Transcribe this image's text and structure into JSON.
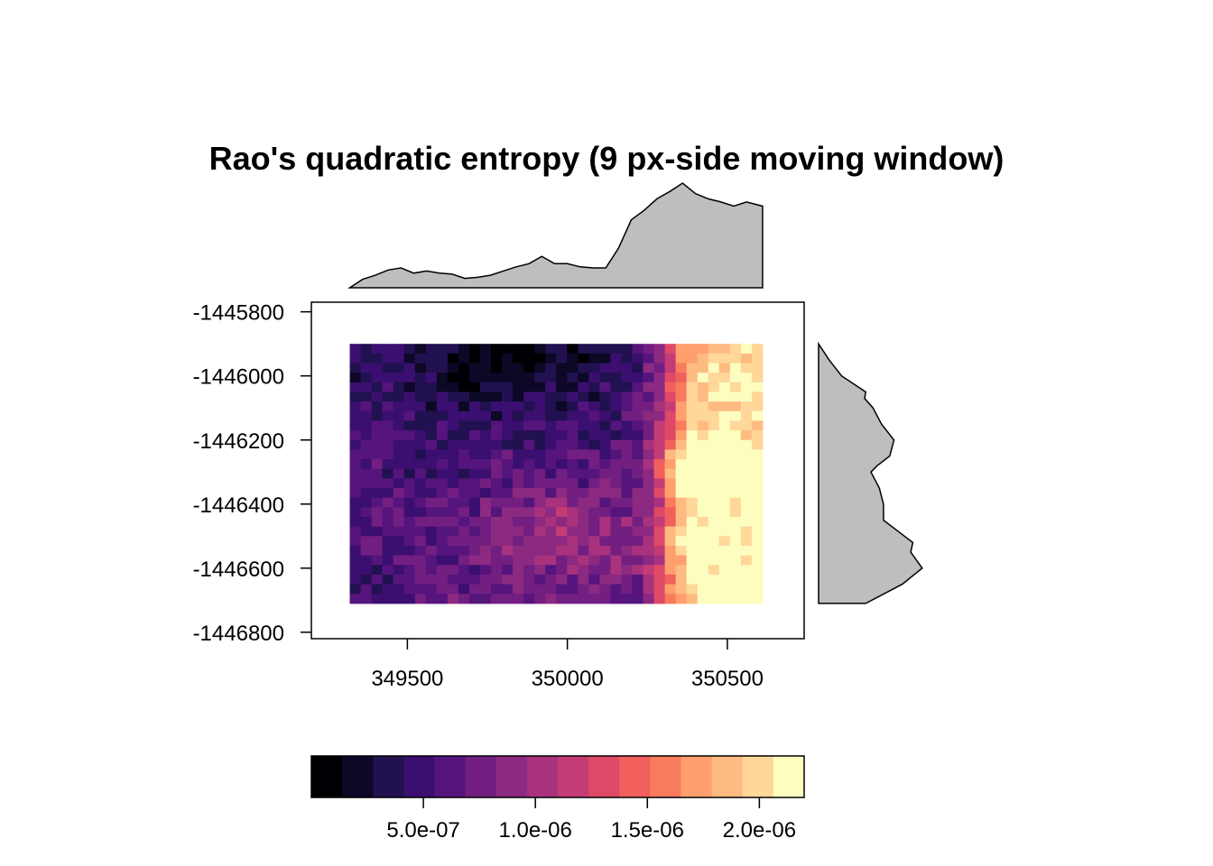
{
  "chart_data": {
    "type": "heatmap",
    "title": "Rao's quadratic entropy (9 px-side moving window)",
    "x_axis": {
      "range": [
        349200,
        350740
      ],
      "ticks": [
        349500,
        350000,
        350500
      ],
      "tick_labels": [
        "349500",
        "350000",
        "350500"
      ]
    },
    "y_axis": {
      "range": [
        -1446820,
        -1445770
      ],
      "ticks": [
        -1445800,
        -1446000,
        -1446200,
        -1446400,
        -1446600,
        -1446800
      ],
      "tick_labels": [
        "-1445800",
        "-1446000",
        "-1446200",
        "-1446400",
        "-1446600",
        "-1446800"
      ]
    },
    "raster_extent": {
      "xmin": 349320,
      "xmax": 350610,
      "ymin": -1446710,
      "ymax": -1445900
    },
    "grid": {
      "cols": 38,
      "rows": 27
    },
    "colorbar": {
      "range": [
        0.0,
        2.2e-06
      ],
      "n_bins": 16,
      "ticks": [
        5e-07,
        1e-06,
        1.5e-06,
        2e-06
      ],
      "tick_labels": [
        "5.0e-07",
        "1.0e-06",
        "1.5e-06",
        "2.0e-06"
      ],
      "colors": [
        "#000004",
        "#0c0826",
        "#221150",
        "#3b0f70",
        "#56147d",
        "#721f81",
        "#8c2981",
        "#a8327d",
        "#c43c75",
        "#de4968",
        "#f1605d",
        "#f97b5d",
        "#fe9f6d",
        "#febb81",
        "#fed799",
        "#fcfdbf"
      ]
    },
    "x_profile": {
      "x": [
        349320,
        349360,
        349400,
        349440,
        349480,
        349520,
        349560,
        349600,
        349640,
        349680,
        349720,
        349760,
        349800,
        349840,
        349880,
        349920,
        349960,
        350000,
        350040,
        350080,
        350120,
        350160,
        350200,
        350240,
        350280,
        350320,
        350360,
        350400,
        350440,
        350480,
        350520,
        350560,
        350610
      ],
      "y": [
        0.0,
        0.08,
        0.12,
        0.17,
        0.19,
        0.14,
        0.16,
        0.14,
        0.13,
        0.09,
        0.1,
        0.12,
        0.16,
        0.2,
        0.23,
        0.3,
        0.23,
        0.23,
        0.2,
        0.19,
        0.19,
        0.38,
        0.65,
        0.74,
        0.85,
        0.92,
        1.0,
        0.9,
        0.85,
        0.82,
        0.78,
        0.82,
        0.78
      ]
    },
    "y_profile": {
      "y": [
        -1445900,
        -1445950,
        -1446000,
        -1446050,
        -1446070,
        -1446100,
        -1446150,
        -1446200,
        -1446250,
        -1446280,
        -1446300,
        -1446350,
        -1446400,
        -1446450,
        -1446500,
        -1446520,
        -1446550,
        -1446600,
        -1446650,
        -1446710
      ],
      "x": [
        0.0,
        0.1,
        0.22,
        0.45,
        0.44,
        0.52,
        0.6,
        0.72,
        0.68,
        0.56,
        0.5,
        0.58,
        0.62,
        0.62,
        0.82,
        0.9,
        0.88,
        0.99,
        0.8,
        0.45
      ]
    }
  }
}
